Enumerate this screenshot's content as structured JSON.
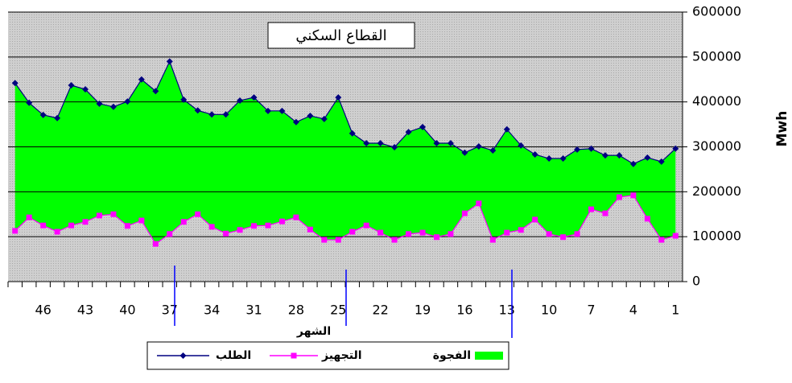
{
  "chart_data": {
    "type": "line",
    "title": "القطاع السكني",
    "x_label": "الشهر",
    "y_label": "Mwh",
    "categories": [
      null,
      null,
      46,
      null,
      null,
      43,
      null,
      null,
      40,
      null,
      null,
      37,
      null,
      null,
      34,
      null,
      null,
      31,
      null,
      null,
      28,
      null,
      null,
      25,
      null,
      null,
      22,
      null,
      null,
      19,
      null,
      null,
      16,
      null,
      null,
      13,
      null,
      null,
      10,
      null,
      null,
      7,
      null,
      null,
      4,
      null,
      null,
      1
    ],
    "series": [
      {
        "name": "الطلب",
        "color": "#000080",
        "values": [
          442000,
          398000,
          371000,
          364000,
          437000,
          428000,
          396000,
          389000,
          401000,
          450000,
          424000,
          490000,
          405000,
          381000,
          372000,
          372000,
          403000,
          410000,
          380000,
          380000,
          355000,
          369000,
          362000,
          410000,
          330000,
          308000,
          308000,
          299000,
          333000,
          344000,
          308000,
          308000,
          287000,
          301000,
          292000,
          339000,
          303000,
          283000,
          274000,
          274000,
          294000,
          296000,
          281000,
          281000,
          262000,
          276000,
          267000,
          296000
        ]
      },
      {
        "name": "التجهيز",
        "color": "#ff00ff",
        "values": [
          113000,
          143000,
          125000,
          111000,
          125000,
          133000,
          147000,
          150000,
          124000,
          136000,
          84000,
          106000,
          133000,
          150000,
          122000,
          107000,
          115000,
          124000,
          125000,
          134000,
          143000,
          116000,
          93000,
          93000,
          111000,
          125000,
          109000,
          93000,
          106000,
          109000,
          99000,
          106000,
          152000,
          174000,
          93000,
          109000,
          115000,
          138000,
          106000,
          99000,
          106000,
          161000,
          152000,
          188000,
          192000,
          140000,
          93000,
          102000
        ]
      }
    ],
    "gap_area": {
      "name": "الفجوة",
      "color": "#00ff00"
    },
    "ylim": [
      0,
      600000
    ],
    "yticks": [
      0,
      100000,
      200000,
      300000,
      400000,
      500000,
      600000
    ],
    "grid": true
  }
}
